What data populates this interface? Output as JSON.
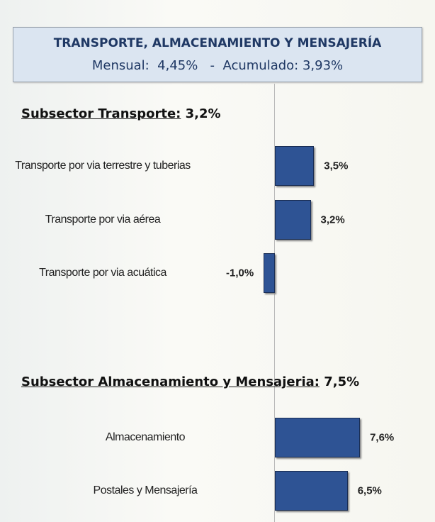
{
  "header": {
    "title": "TRANSPORTE, ALMACENAMIENTO Y MENSAJERÍA",
    "subtitle": "Mensual:  4,45%   -  Acumulado: 3,93%"
  },
  "chart_data": [
    {
      "type": "bar",
      "orientation": "horizontal",
      "title": "Subsector Transporte:",
      "title_value": "3,2%",
      "categories": [
        "Transporte por via terrestre y tuberias",
        "Transporte por via aérea",
        "Transporte por via acuática"
      ],
      "values": [
        3.5,
        3.2,
        -1.0
      ],
      "value_labels": [
        "3,5%",
        "3,2%",
        "-1,0%"
      ],
      "color": "#2e5394"
    },
    {
      "type": "bar",
      "orientation": "horizontal",
      "title": "Subsector Almacenamiento y Mensajeria:",
      "title_value": "7,5%",
      "categories": [
        "Almacenamiento",
        "Postales y Mensajería"
      ],
      "values": [
        7.6,
        6.5
      ],
      "value_labels": [
        "7,6%",
        "6,5%"
      ],
      "color": "#2e5394"
    }
  ]
}
